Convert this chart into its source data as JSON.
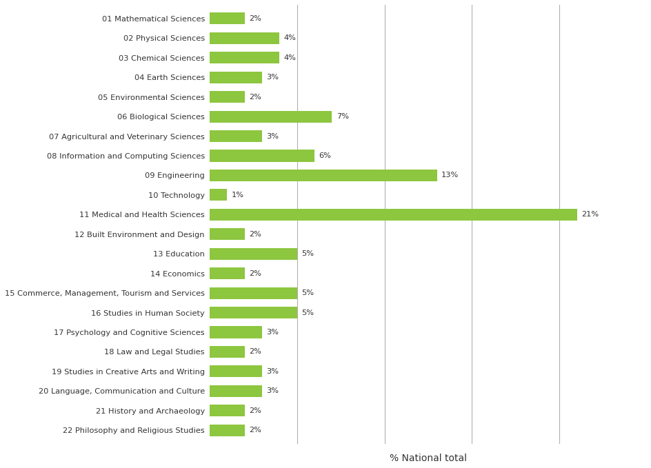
{
  "categories": [
    "01 Mathematical Sciences",
    "02 Physical Sciences",
    "03 Chemical Sciences",
    "04 Earth Sciences",
    "05 Environmental Sciences",
    "06 Biological Sciences",
    "07 Agricultural and Veterinary Sciences",
    "08 Information and Computing Sciences",
    "09 Engineering",
    "10 Technology",
    "11 Medical and Health Sciences",
    "12 Built Environment and Design",
    "13 Education",
    "14 Economics",
    "15 Commerce, Management, Tourism and Services",
    "16 Studies in Human Society",
    "17 Psychology and Cognitive Sciences",
    "18 Law and Legal Studies",
    "19 Studies in Creative Arts and Writing",
    "20 Language, Communication and Culture",
    "21 History and Archaeology",
    "22 Philosophy and Religious Studies"
  ],
  "values": [
    2,
    4,
    4,
    3,
    2,
    7,
    3,
    6,
    13,
    1,
    21,
    2,
    5,
    2,
    5,
    5,
    3,
    2,
    3,
    3,
    2,
    2
  ],
  "bar_color": "#8dc63f",
  "xlabel": "% National total",
  "background_color": "#ffffff",
  "xlim": [
    0,
    25
  ],
  "grid_lines": [
    5,
    10,
    15,
    20,
    25
  ],
  "label_fontsize": 8.2,
  "xlabel_fontsize": 10,
  "value_fontsize": 8.2
}
